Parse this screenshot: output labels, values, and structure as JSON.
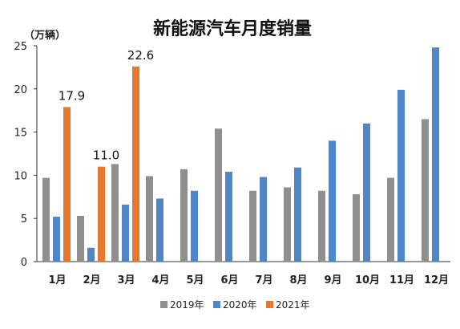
{
  "chart_data": {
    "type": "bar",
    "title": "新能源汽车月度销量",
    "unit_label": "（万辆）",
    "categories": [
      "1月",
      "2月",
      "3月",
      "4月",
      "5月",
      "6月",
      "7月",
      "8月",
      "9月",
      "10月",
      "11月",
      "12月"
    ],
    "series": [
      {
        "name": "2019年",
        "color": "#8f8f8f",
        "values": [
          9.7,
          5.3,
          11.3,
          9.9,
          10.7,
          15.4,
          8.2,
          8.6,
          8.2,
          7.8,
          9.7,
          16.5
        ]
      },
      {
        "name": "2020年",
        "color": "#4f86c6",
        "values": [
          5.2,
          1.6,
          6.6,
          7.3,
          8.2,
          10.4,
          9.8,
          10.9,
          14.0,
          16.0,
          19.9,
          24.8
        ]
      },
      {
        "name": "2021年",
        "color": "#e6772e",
        "values": [
          17.9,
          11.0,
          22.6,
          null,
          null,
          null,
          null,
          null,
          null,
          null,
          null,
          null
        ]
      }
    ],
    "data_labels": [
      {
        "series": "2021年",
        "category": "1月",
        "text": "17.9"
      },
      {
        "series": "2021年",
        "category": "2月",
        "text": "11.0"
      },
      {
        "series": "2021年",
        "category": "3月",
        "text": "22.6"
      }
    ],
    "ylim": [
      0,
      25
    ],
    "yticks": [
      0,
      5,
      10,
      15,
      20,
      25
    ],
    "grid": false,
    "legend_position": "bottom"
  }
}
